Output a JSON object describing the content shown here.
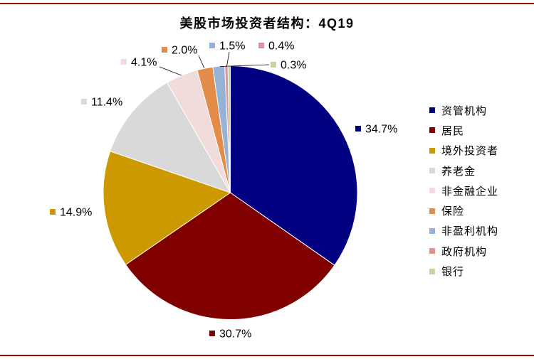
{
  "chart_data": {
    "type": "pie",
    "title": "美股市场投资者结构：4Q19",
    "categories": [
      "资管机构",
      "居民",
      "境外投资者",
      "养老金",
      "非金融企业",
      "保险",
      "非盈利机构",
      "政府机构",
      "银行"
    ],
    "values": [
      34.7,
      30.7,
      14.9,
      11.4,
      4.1,
      2.0,
      1.5,
      0.4,
      0.3
    ],
    "unit": "%",
    "colors": [
      "#000080",
      "#800000",
      "#CC9900",
      "#D9D9D9",
      "#F2DCDB",
      "#E38C49",
      "#95B3D7",
      "#D99694",
      "#C3D69B"
    ],
    "legend_position": "right"
  }
}
